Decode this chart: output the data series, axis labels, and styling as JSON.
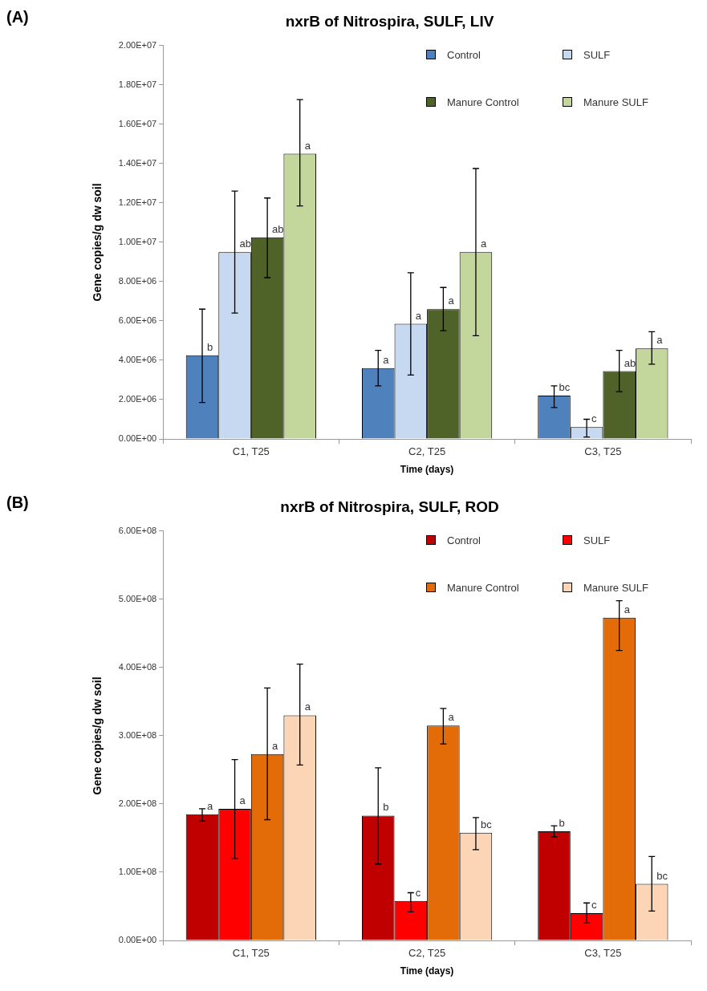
{
  "chart_data": [
    {
      "type": "bar",
      "title": "nxrB of Nitrospira, SULF, LIV",
      "xlabel": "Time (days)",
      "ylabel": "Gene copies/g dw soil",
      "annotations": [
        "(A)"
      ],
      "categories": [
        "C1, T25",
        "C2, T25",
        "C3, T25"
      ],
      "series": [
        {
          "name": "Control",
          "color": "#4f81bd",
          "values": [
            4250000,
            3600000,
            2200000
          ],
          "errors": [
            [
              1850000,
              6600000
            ],
            [
              2700000,
              4500000
            ],
            [
              1600000,
              2700000
            ]
          ],
          "value_labels": [
            "b",
            "a",
            "bc"
          ]
        },
        {
          "name": "SULF",
          "color": "#c6d9f1",
          "values": [
            9500000,
            5850000,
            600000
          ],
          "errors": [
            [
              6400000,
              12600000
            ],
            [
              3250000,
              8450000
            ],
            [
              100000,
              1000000
            ]
          ],
          "value_labels": [
            "ab",
            "a",
            "c"
          ]
        },
        {
          "name": "Manure Control",
          "color": "#4f6228",
          "values": [
            10250000,
            6600000,
            3450000
          ],
          "errors": [
            [
              8200000,
              12250000
            ],
            [
              5500000,
              7700000
            ],
            [
              2400000,
              4500000
            ]
          ],
          "value_labels": [
            "ab",
            "a",
            "ab"
          ]
        },
        {
          "name": "Manure SULF",
          "color": "#c3d69b",
          "values": [
            14500000,
            9500000,
            4600000
          ],
          "errors": [
            [
              11850000,
              17250000
            ],
            [
              5250000,
              13750000
            ],
            [
              3800000,
              5450000
            ]
          ],
          "value_labels": [
            "a",
            "a",
            "a"
          ]
        }
      ],
      "ylim": [
        0,
        20000000
      ],
      "yticks": [
        {
          "value": 0,
          "label": "0.00E+00"
        },
        {
          "value": 2000000,
          "label": "2.00E+06"
        },
        {
          "value": 4000000,
          "label": "4.00E+06"
        },
        {
          "value": 6000000,
          "label": "6.00E+06"
        },
        {
          "value": 8000000,
          "label": "8.00E+06"
        },
        {
          "value": 10000000,
          "label": "1.00E+07"
        },
        {
          "value": 12000000,
          "label": "1.20E+07"
        },
        {
          "value": 14000000,
          "label": "1.40E+07"
        },
        {
          "value": 16000000,
          "label": "1.60E+07"
        },
        {
          "value": 18000000,
          "label": "1.80E+07"
        },
        {
          "value": 20000000,
          "label": "2.00E+07"
        }
      ],
      "grid": false,
      "legend": "top right"
    },
    {
      "type": "bar",
      "title": "nxrB of Nitrospira, SULF, ROD",
      "xlabel": "Time (days)",
      "ylabel": "Gene copies/g dw soil",
      "annotations": [
        "(B)"
      ],
      "categories": [
        "C1, T25",
        "C2, T25",
        "C3, T25"
      ],
      "series": [
        {
          "name": "Control",
          "color": "#c00000",
          "values": [
            185000000,
            183000000,
            160000000
          ],
          "errors": [
            [
              175000000,
              193000000
            ],
            [
              112000000,
              253000000
            ],
            [
              152000000,
              168000000
            ]
          ],
          "value_labels": [
            "a",
            "b",
            "b"
          ]
        },
        {
          "name": "SULF",
          "color": "#ff0000",
          "values": [
            193000000,
            58000000,
            40000000
          ],
          "errors": [
            [
              120000000,
              265000000
            ],
            [
              42000000,
              70000000
            ],
            [
              26000000,
              55000000
            ]
          ],
          "value_labels": [
            "a",
            "c",
            "c"
          ]
        },
        {
          "name": "Manure Control",
          "color": "#e36c09",
          "values": [
            273000000,
            315000000,
            473000000
          ],
          "errors": [
            [
              177000000,
              370000000
            ],
            [
              288000000,
              340000000
            ],
            [
              425000000,
              498000000
            ]
          ],
          "value_labels": [
            "a",
            "a",
            "a"
          ]
        },
        {
          "name": "Manure SULF",
          "color": "#fbd5b5",
          "values": [
            330000000,
            158000000,
            83000000
          ],
          "errors": [
            [
              257000000,
              405000000
            ],
            [
              133000000,
              180000000
            ],
            [
              43000000,
              123000000
            ]
          ],
          "value_labels": [
            "a",
            "bc",
            "bc"
          ]
        }
      ],
      "ylim": [
        0,
        600000000
      ],
      "yticks": [
        {
          "value": 0,
          "label": "0.00E+00"
        },
        {
          "value": 100000000,
          "label": "1.00E+08"
        },
        {
          "value": 200000000,
          "label": "2.00E+08"
        },
        {
          "value": 300000000,
          "label": "3.00E+08"
        },
        {
          "value": 400000000,
          "label": "4.00E+08"
        },
        {
          "value": 500000000,
          "label": "5.00E+08"
        },
        {
          "value": 600000000,
          "label": "6.00E+08"
        }
      ],
      "grid": false,
      "legend": "top right"
    }
  ]
}
